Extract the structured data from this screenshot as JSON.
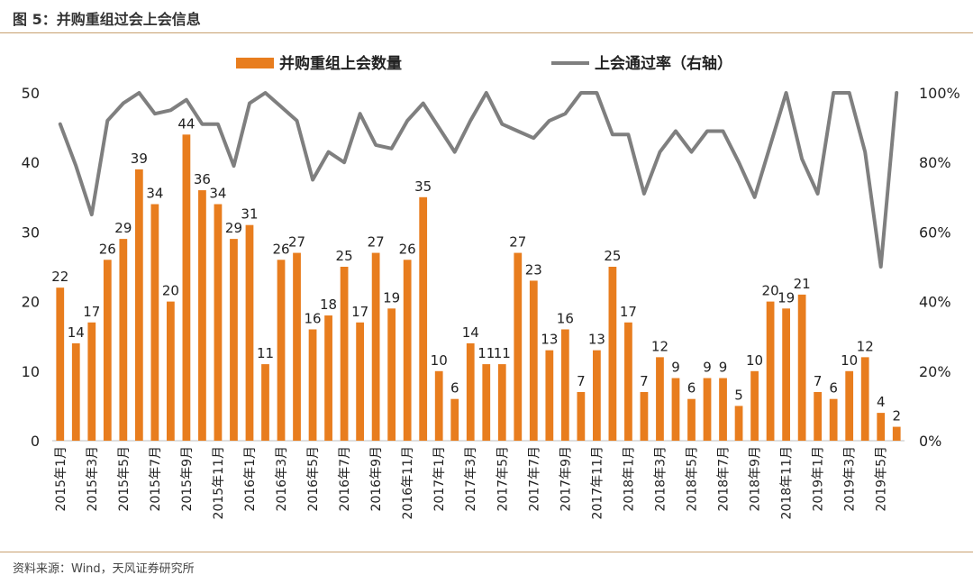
{
  "figure_title": "图 5：并购重组过会上会信息",
  "source": "资料来源：Wind，天风证券研究所",
  "colors": {
    "bar": "#E87D1E",
    "line": "#7F7F7F",
    "accent_rule": "#C8A070"
  },
  "chart_data": {
    "type": "bar+line",
    "legend": [
      "并购重组上会数量",
      "上会通过率（右轴）"
    ],
    "legend_position": "top-center",
    "grid": false,
    "x_tick_labels": [
      "2015年1月",
      "2015年3月",
      "2015年5月",
      "2015年7月",
      "2015年9月",
      "2015年11月",
      "2016年1月",
      "2016年3月",
      "2016年5月",
      "2016年7月",
      "2016年9月",
      "2016年11月",
      "2017年1月",
      "2017年3月",
      "2017年5月",
      "2017年7月",
      "2017年9月",
      "2017年11月",
      "2018年1月",
      "2018年3月",
      "2018年5月",
      "2018年7月",
      "2018年9月",
      "2018年11月",
      "2019年1月",
      "2019年3月",
      "2019年5月"
    ],
    "x_tick_every": 2,
    "y_left": {
      "ylim": [
        0,
        50
      ],
      "ticks": [
        "0",
        "10",
        "20",
        "30",
        "40",
        "50"
      ]
    },
    "y_right": {
      "ylim": [
        0,
        100
      ],
      "ticks": [
        "0%",
        "20%",
        "40%",
        "60%",
        "80%",
        "100%"
      ]
    },
    "series": [
      {
        "name": "并购重组上会数量",
        "type": "bar",
        "axis": "left",
        "values": [
          22,
          14,
          17,
          26,
          29,
          39,
          34,
          20,
          44,
          36,
          34,
          29,
          31,
          11,
          26,
          27,
          16,
          18,
          25,
          17,
          27,
          19,
          26,
          35,
          10,
          6,
          14,
          11,
          11,
          27,
          23,
          13,
          16,
          7,
          13,
          25,
          17,
          7,
          12,
          9,
          6,
          9,
          9,
          5,
          10,
          20,
          19,
          21,
          7,
          6,
          10,
          12,
          4,
          2
        ]
      },
      {
        "name": "上会通过率（右轴）",
        "type": "line",
        "axis": "right",
        "values": [
          91,
          79,
          65,
          92,
          97,
          100,
          94,
          95,
          98,
          91,
          91,
          79,
          97,
          100,
          96,
          92,
          75,
          83,
          80,
          94,
          85,
          84,
          92,
          97,
          90,
          83,
          92,
          100,
          91,
          89,
          87,
          92,
          94,
          100,
          100,
          88,
          88,
          71,
          83,
          89,
          83,
          89,
          89,
          80,
          70,
          85,
          100,
          81,
          71,
          100,
          100,
          83,
          50,
          100
        ]
      }
    ]
  }
}
